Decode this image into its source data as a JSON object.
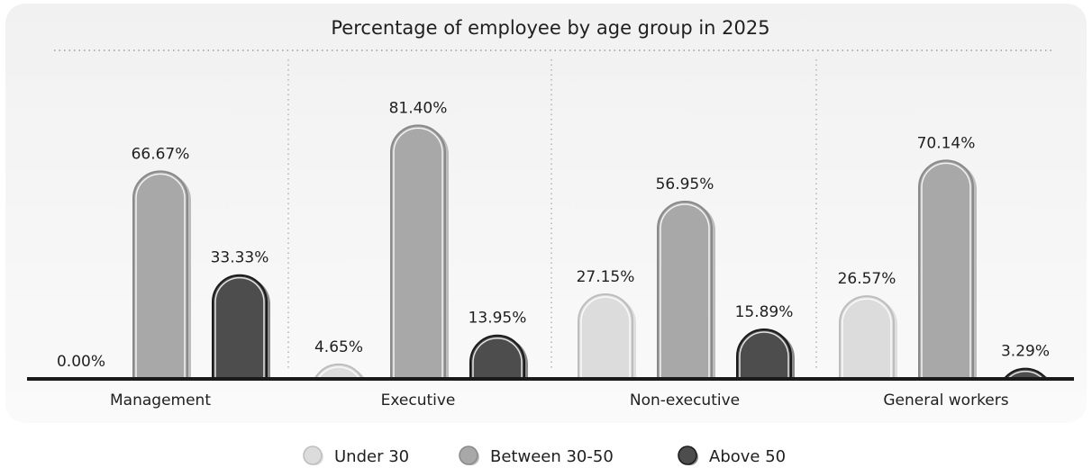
{
  "chart_data": {
    "type": "bar",
    "title": "Percentage of employee by age group in 2025",
    "categories": [
      "Management",
      "Executive",
      "Non-executive",
      "General workers"
    ],
    "series": [
      {
        "name": "Under 30",
        "color": "#dcdcdc",
        "values": [
          0.0,
          4.65,
          27.15,
          26.57
        ],
        "labels": [
          "0.00%",
          "4.65%",
          "27.15%",
          "26.57%"
        ]
      },
      {
        "name": "Between 30-50",
        "color": "#a8a8a8",
        "values": [
          66.67,
          81.4,
          56.95,
          70.14
        ],
        "labels": [
          "66.67%",
          "81.40%",
          "56.95%",
          "70.14%"
        ]
      },
      {
        "name": "Above 50",
        "color": "#4d4d4d",
        "values": [
          33.33,
          13.95,
          15.89,
          3.29
        ],
        "labels": [
          "33.33%",
          "13.95%",
          "15.89%",
          "3.29%"
        ]
      }
    ],
    "ylim": [
      0,
      100
    ],
    "xlabel": "",
    "ylabel": "",
    "grid": false,
    "legend_position": "bottom"
  }
}
